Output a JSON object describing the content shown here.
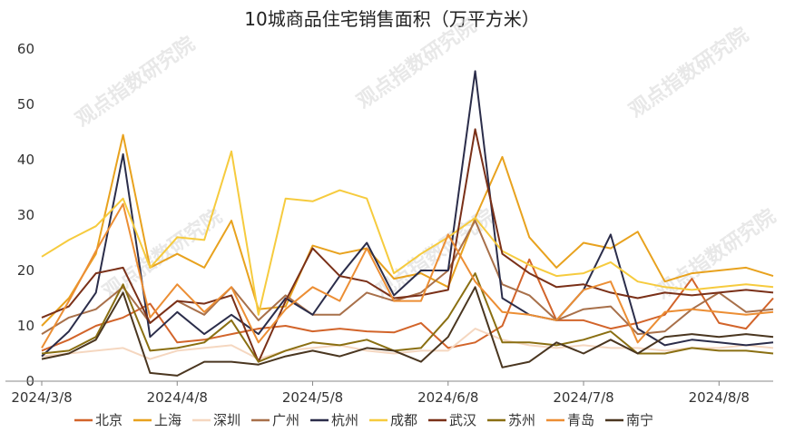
{
  "chart_data": {
    "type": "line",
    "title": "10城商品住宅销售面积（万平方米）",
    "xlabel": "",
    "ylabel": "",
    "ylim": [
      0,
      60
    ],
    "yticks": [
      0,
      10,
      20,
      30,
      40,
      50,
      60
    ],
    "x_tick_labels": [
      "2024/3/8",
      "2024/4/8",
      "2024/5/8",
      "2024/6/8",
      "2024/7/8",
      "2024/8/8"
    ],
    "x_tick_indices": [
      0,
      5,
      10,
      15,
      20,
      25
    ],
    "grid": false,
    "legend_position": "bottom",
    "watermark": "观点指数研究院",
    "n_points": 28,
    "series": [
      {
        "name": "北京",
        "color": "#d2642a",
        "values": [
          5.5,
          7.5,
          10.0,
          11.5,
          14.0,
          7.0,
          7.5,
          8.5,
          9.5,
          10.0,
          9.0,
          9.5,
          9.0,
          8.8,
          10.5,
          6.0,
          7.0,
          10.0,
          22.0,
          11.0,
          11.0,
          9.5,
          10.5,
          12.0,
          18.5,
          10.5,
          9.5,
          15.0
        ]
      },
      {
        "name": "上海",
        "color": "#e8a21e",
        "values": [
          10.0,
          15.0,
          23.0,
          44.5,
          20.5,
          23.0,
          20.5,
          29.0,
          13.0,
          13.5,
          24.5,
          23.0,
          24.0,
          18.5,
          19.5,
          17.0,
          29.5,
          40.5,
          26.0,
          20.5,
          25.0,
          24.0,
          27.0,
          18.0,
          19.5,
          20.0,
          20.5,
          19.0
        ]
      },
      {
        "name": "深圳",
        "color": "#f5d7c0",
        "values": [
          4.5,
          5.0,
          5.5,
          6.0,
          4.0,
          5.5,
          6.0,
          6.5,
          4.0,
          5.5,
          6.0,
          6.5,
          5.5,
          5.0,
          5.5,
          5.5,
          9.5,
          7.5,
          6.5,
          6.0,
          6.5,
          6.0,
          6.0,
          5.5,
          6.0,
          6.0,
          6.5,
          6.0
        ]
      },
      {
        "name": "广州",
        "color": "#a8704a",
        "values": [
          8.5,
          11.5,
          13.0,
          17.0,
          10.5,
          14.5,
          12.0,
          17.0,
          11.0,
          15.5,
          12.0,
          12.0,
          16.0,
          14.5,
          16.0,
          20.0,
          29.0,
          17.5,
          15.5,
          11.0,
          13.0,
          13.5,
          8.5,
          9.0,
          13.0,
          16.0,
          12.5,
          13.0
        ]
      },
      {
        "name": "杭州",
        "color": "#2b2d4a",
        "values": [
          4.5,
          9.0,
          16.0,
          41.0,
          8.0,
          12.5,
          8.5,
          12.0,
          8.5,
          15.0,
          12.0,
          19.0,
          25.0,
          15.5,
          20.0,
          20.0,
          56.0,
          15.0,
          12.0,
          11.0,
          16.5,
          26.5,
          9.5,
          6.5,
          7.5,
          7.0,
          6.5,
          7.0
        ]
      },
      {
        "name": "成都",
        "color": "#f6cb3e",
        "values": [
          22.5,
          25.5,
          28.0,
          33.0,
          20.5,
          26.0,
          25.5,
          41.5,
          12.0,
          33.0,
          32.5,
          34.5,
          33.0,
          19.5,
          23.0,
          26.0,
          29.5,
          23.5,
          21.0,
          19.0,
          19.5,
          21.5,
          18.0,
          17.0,
          16.5,
          17.0,
          17.5,
          17.0
        ]
      },
      {
        "name": "武汉",
        "color": "#7a3018",
        "values": [
          11.5,
          13.5,
          19.5,
          20.5,
          10.5,
          14.5,
          14.0,
          15.5,
          3.5,
          14.5,
          24.0,
          19.0,
          18.0,
          15.0,
          15.5,
          16.5,
          45.5,
          23.0,
          19.5,
          17.0,
          17.5,
          16.0,
          15.0,
          16.0,
          15.5,
          16.0,
          16.5,
          16.0
        ]
      },
      {
        "name": "苏州",
        "color": "#8a6f12",
        "values": [
          5.0,
          5.5,
          8.0,
          17.5,
          5.5,
          6.0,
          7.0,
          11.0,
          3.5,
          5.5,
          7.0,
          6.5,
          7.5,
          5.5,
          6.0,
          11.5,
          19.5,
          7.0,
          7.0,
          6.5,
          7.5,
          9.0,
          5.0,
          5.0,
          6.0,
          5.5,
          5.5,
          5.0
        ]
      },
      {
        "name": "青岛",
        "color": "#ec8e34",
        "values": [
          6.0,
          14.5,
          23.5,
          32.0,
          11.5,
          17.5,
          12.5,
          17.0,
          7.0,
          13.0,
          17.0,
          14.5,
          24.0,
          14.5,
          14.5,
          26.5,
          18.0,
          12.5,
          12.0,
          11.0,
          16.5,
          18.0,
          7.0,
          12.5,
          13.0,
          12.5,
          12.0,
          12.5
        ]
      },
      {
        "name": "南宁",
        "color": "#4a3620",
        "values": [
          4.0,
          5.0,
          7.5,
          16.0,
          1.5,
          1.0,
          3.5,
          3.5,
          3.0,
          4.5,
          5.5,
          4.5,
          6.0,
          5.5,
          3.5,
          8.0,
          17.0,
          2.5,
          3.5,
          7.0,
          5.0,
          7.5,
          5.0,
          8.0,
          8.5,
          8.0,
          8.5,
          8.0
        ]
      }
    ]
  }
}
